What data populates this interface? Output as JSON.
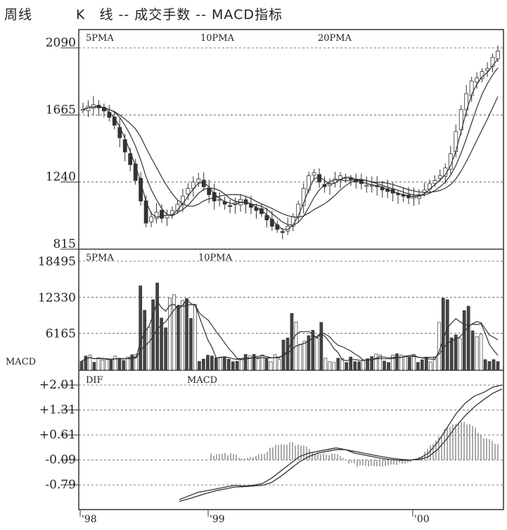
{
  "header": {
    "part1": "周线",
    "part2": "K　线 -- 成交手数 -- MACD指标"
  },
  "chart_data": [
    {
      "type": "candlestick",
      "pane": "price",
      "legend": [
        "5PMA",
        "10PMA",
        "20PMA"
      ],
      "y_ticks": [
        "2090",
        "1665",
        "1240",
        "815"
      ],
      "ylim": [
        815,
        2090
      ],
      "x_ticks": [
        "98",
        "99",
        "00"
      ],
      "approx_close_path": [
        1700,
        1720,
        1730,
        1710,
        1690,
        1650,
        1600,
        1520,
        1430,
        1350,
        1250,
        1120,
        980,
        1020,
        1050,
        1010,
        1030,
        1060,
        1100,
        1150,
        1200,
        1240,
        1260,
        1210,
        1160,
        1120,
        1130,
        1100,
        1090,
        1110,
        1130,
        1100,
        1080,
        1060,
        1040,
        1000,
        960,
        940,
        920,
        960,
        1020,
        1100,
        1200,
        1280,
        1300,
        1240,
        1210,
        1230,
        1260,
        1280,
        1270,
        1260,
        1240,
        1230,
        1220,
        1220,
        1210,
        1190,
        1180,
        1170,
        1160,
        1150,
        1140,
        1150,
        1160,
        1190,
        1230,
        1250,
        1280,
        1330,
        1420,
        1560,
        1700,
        1800,
        1880,
        1900,
        1940,
        1960,
        2030,
        2070
      ]
    },
    {
      "type": "bar",
      "pane": "volume",
      "legend": [
        "5PMA",
        "10PMA"
      ],
      "y_ticks": [
        "18495",
        "12330",
        "6165"
      ],
      "ylim": [
        0,
        18495
      ]
    },
    {
      "type": "line",
      "pane": "macd",
      "ylabel": "MACD",
      "legend": [
        "DIF",
        "MACD"
      ],
      "y_ticks": [
        "+2.01",
        "+1.31",
        "+0.61",
        "-0.09",
        "-0.79"
      ],
      "ylim": [
        -1.2,
        2.1
      ],
      "dif_path": [
        -1.2,
        -1.1,
        -1.0,
        -0.95,
        -0.9,
        -0.85,
        -0.8,
        -0.82,
        -0.8,
        -0.75,
        -0.6,
        -0.4,
        -0.2,
        0.0,
        0.1,
        0.15,
        0.2,
        0.25,
        0.2,
        0.1,
        0.05,
        0.0,
        -0.05,
        -0.08,
        -0.1,
        -0.1,
        -0.05,
        0.1,
        0.4,
        0.8,
        1.2,
        1.5,
        1.7,
        1.8,
        1.95,
        2.01
      ],
      "macd_path": [
        -1.25,
        -1.18,
        -1.1,
        -1.02,
        -0.95,
        -0.9,
        -0.85,
        -0.84,
        -0.82,
        -0.8,
        -0.72,
        -0.55,
        -0.35,
        -0.15,
        0.0,
        0.1,
        0.15,
        0.2,
        0.2,
        0.15,
        0.1,
        0.05,
        0.0,
        -0.04,
        -0.07,
        -0.09,
        -0.08,
        0.0,
        0.2,
        0.5,
        0.85,
        1.15,
        1.4,
        1.6,
        1.78,
        1.9
      ]
    }
  ]
}
